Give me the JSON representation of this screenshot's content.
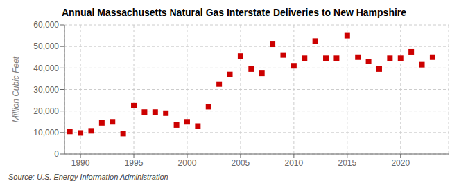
{
  "chart_data": {
    "type": "scatter",
    "title": "Annual Massachusetts Natural Gas Interstate Deliveries to New Hampshire",
    "y_label": "Million Cubic Feet",
    "source": "Source: U.S. Energy Information Administration",
    "x": [
      1989,
      1990,
      1991,
      1992,
      1993,
      1994,
      1995,
      1996,
      1997,
      1998,
      1999,
      2000,
      2001,
      2002,
      2003,
      2004,
      2005,
      2006,
      2007,
      2008,
      2009,
      2010,
      2011,
      2012,
      2013,
      2014,
      2015,
      2016,
      2017,
      2018,
      2019,
      2020,
      2021,
      2022,
      2023
    ],
    "values": [
      10500,
      9800,
      10800,
      14500,
      15000,
      9500,
      22500,
      19500,
      19500,
      19000,
      13500,
      15000,
      13000,
      22000,
      32500,
      37000,
      45500,
      39500,
      37500,
      51000,
      46000,
      41000,
      44500,
      52500,
      44500,
      44500,
      55000,
      45000,
      43000,
      39500,
      44500,
      44500,
      47500,
      41500,
      45000
    ],
    "color": "#cc0000",
    "marker": "square",
    "xlim": [
      1988.5,
      2024.5
    ],
    "xticks": [
      1990,
      1995,
      2000,
      2005,
      2010,
      2015,
      2020
    ],
    "ylim": [
      0,
      60000
    ],
    "yticks": [
      0,
      {
        "value": 10000,
        "label": "10,000"
      },
      {
        "value": 20000,
        "label": "20,000"
      },
      {
        "value": 30000,
        "label": "30,000"
      },
      {
        "value": 40000,
        "label": "40,000"
      },
      {
        "value": 50000,
        "label": "50,000"
      },
      {
        "value": 60000,
        "label": "60,000"
      }
    ],
    "grid": true
  }
}
